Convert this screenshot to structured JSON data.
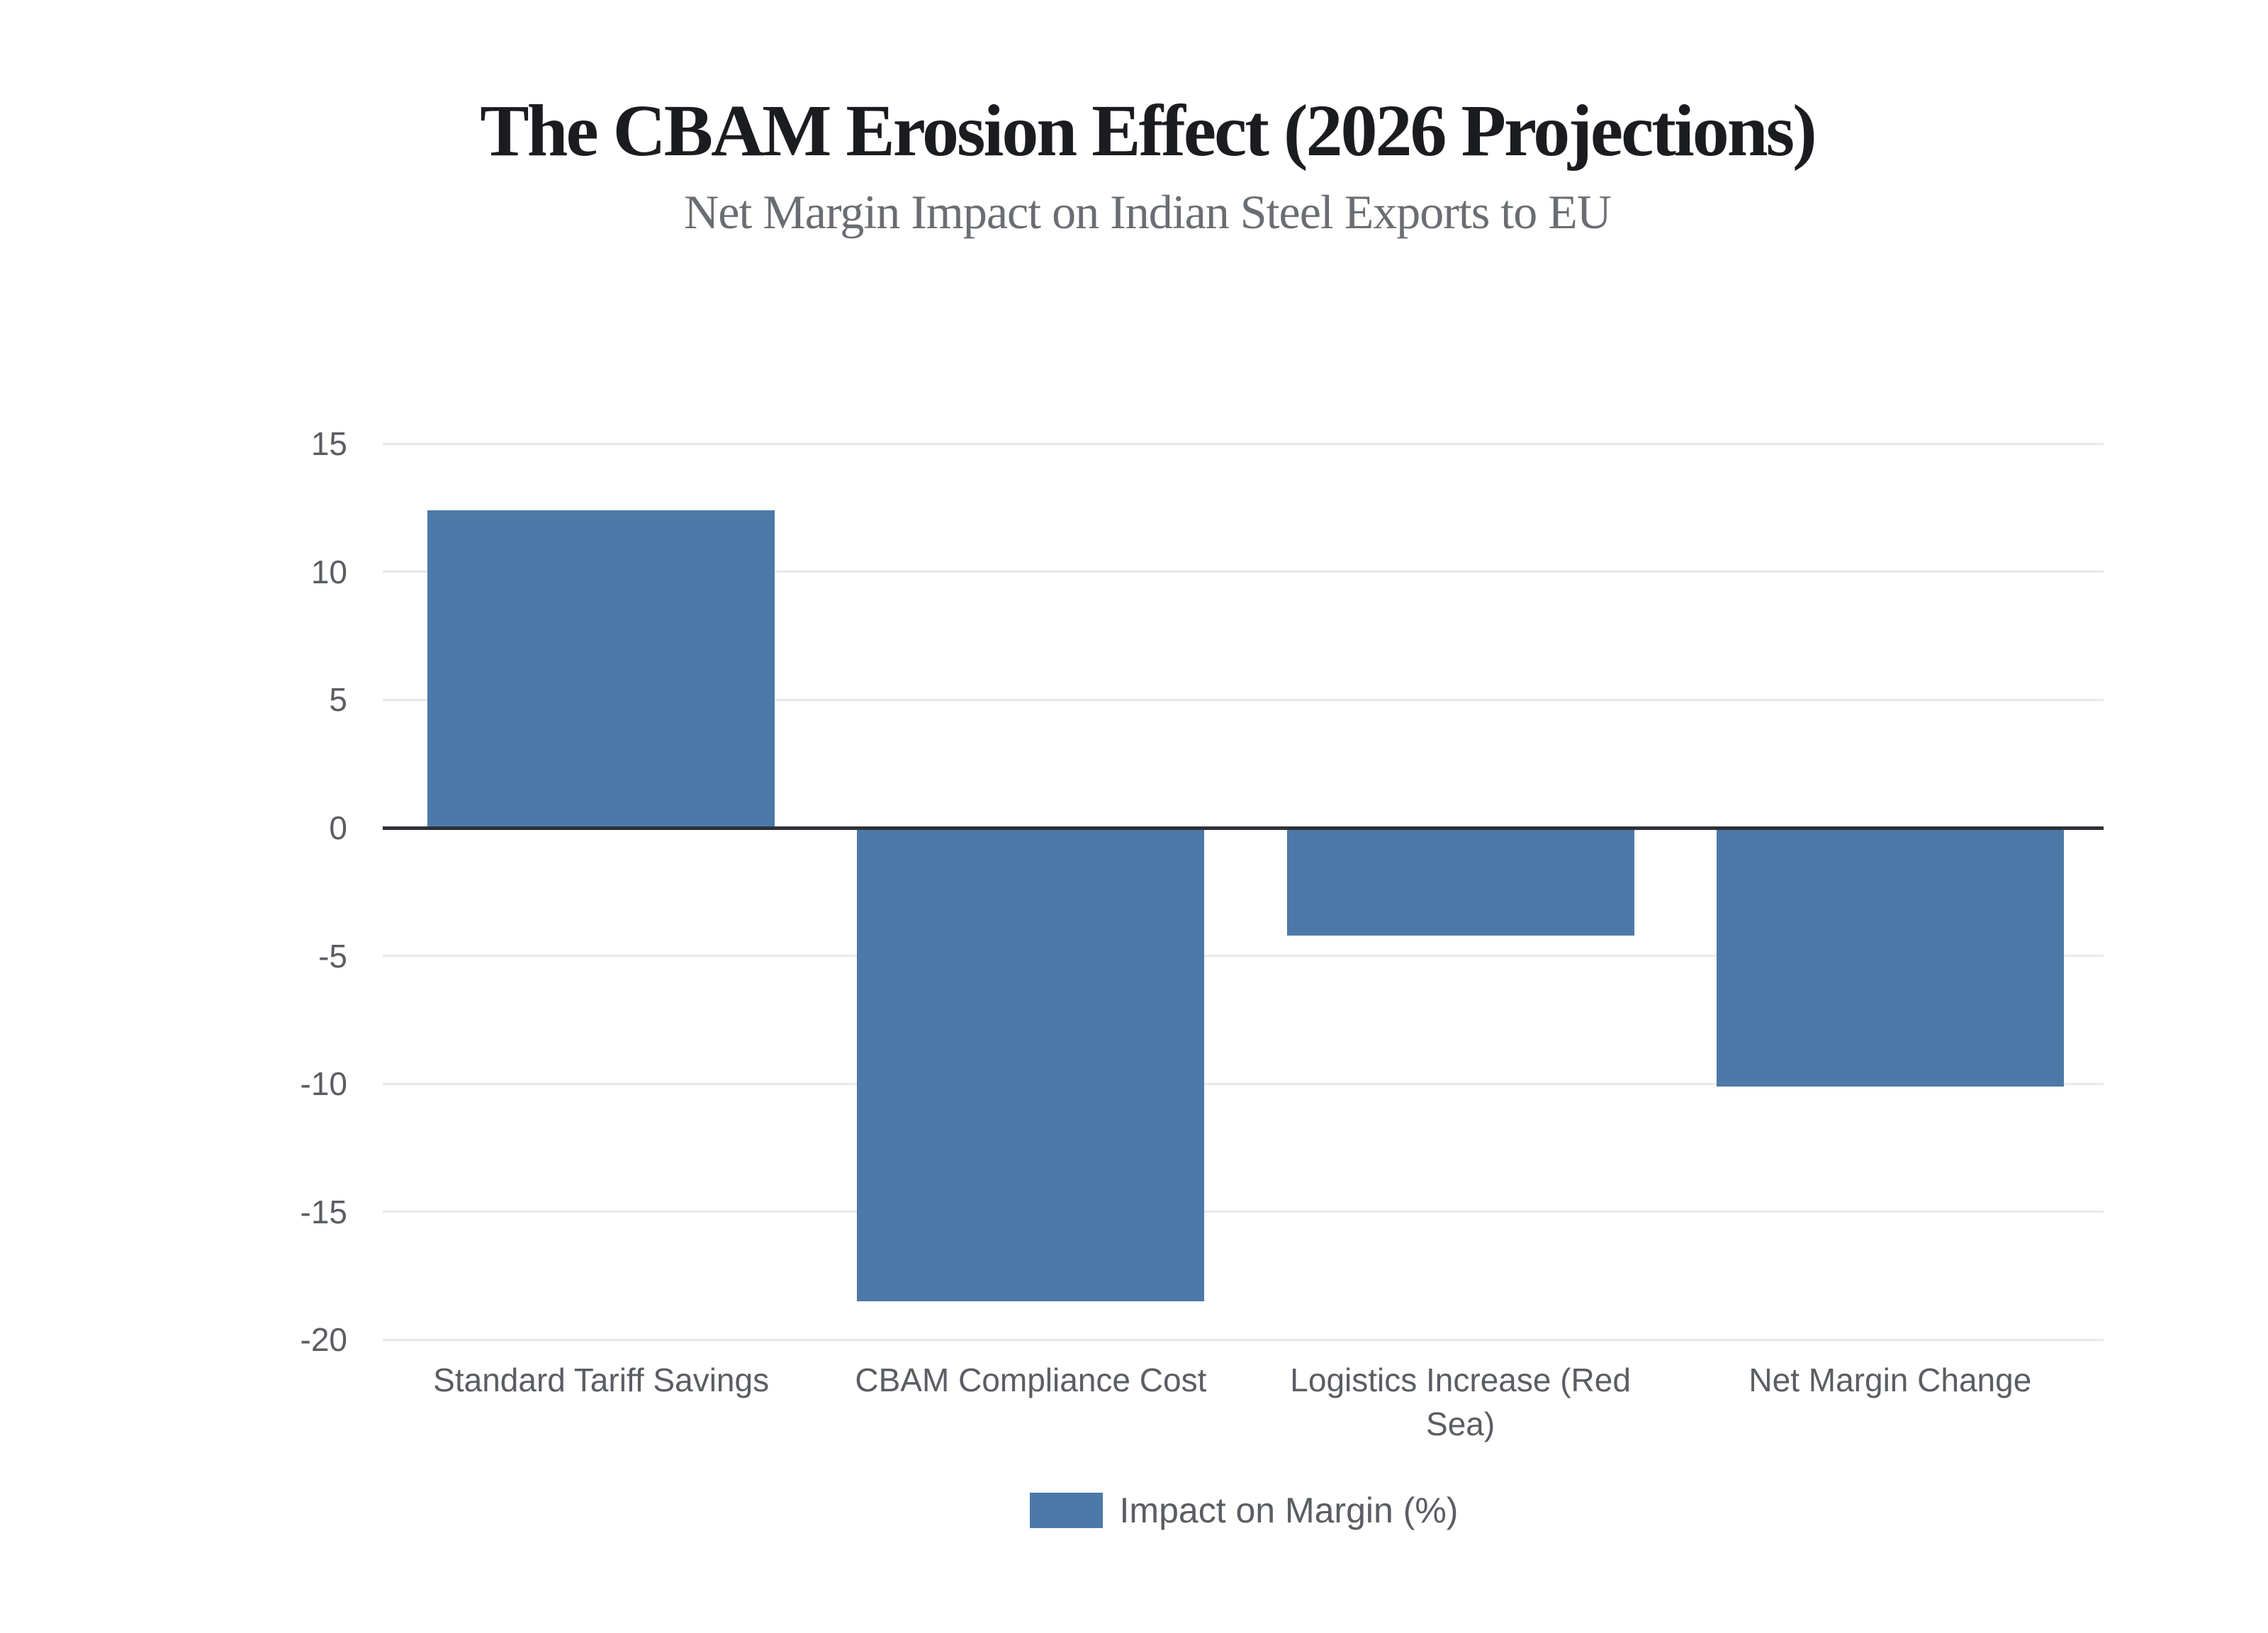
{
  "header": {
    "title": "The CBAM Erosion Effect (2026 Projections)",
    "subtitle": "Net Margin Impact on Indian Steel Exports to EU"
  },
  "legend": {
    "label": "Impact on Margin (%)",
    "swatch_color": "#4d79a8"
  },
  "chart_data": {
    "type": "bar",
    "title": "The CBAM Erosion Effect (2026 Projections)",
    "subtitle": "Net Margin Impact on Indian Steel Exports to EU",
    "categories": [
      "Standard Tariff Savings",
      "CBAM Compliance Cost",
      "Logistics Increase (Red Sea)",
      "Net Margin Change"
    ],
    "series": [
      {
        "name": "Impact on Margin (%)",
        "values": [
          12.4,
          -18.5,
          -4.2,
          -10.1
        ],
        "color": "#4d79a8"
      }
    ],
    "xlabel": "",
    "ylabel": "",
    "ylim": [
      -20,
      15
    ],
    "yticks": [
      15,
      10,
      5,
      0,
      -5,
      -10,
      -15,
      -20
    ],
    "grid": true,
    "legend_position": "bottom",
    "colors": {
      "bar": "#4d79a8",
      "gridline": "#e8e9ec",
      "zero_axis": "#2e3136",
      "title_text": "#1b1c20",
      "subtitle_text": "#6a6d72",
      "axis_text": "#5a5d62",
      "background": "#ffffff"
    }
  }
}
